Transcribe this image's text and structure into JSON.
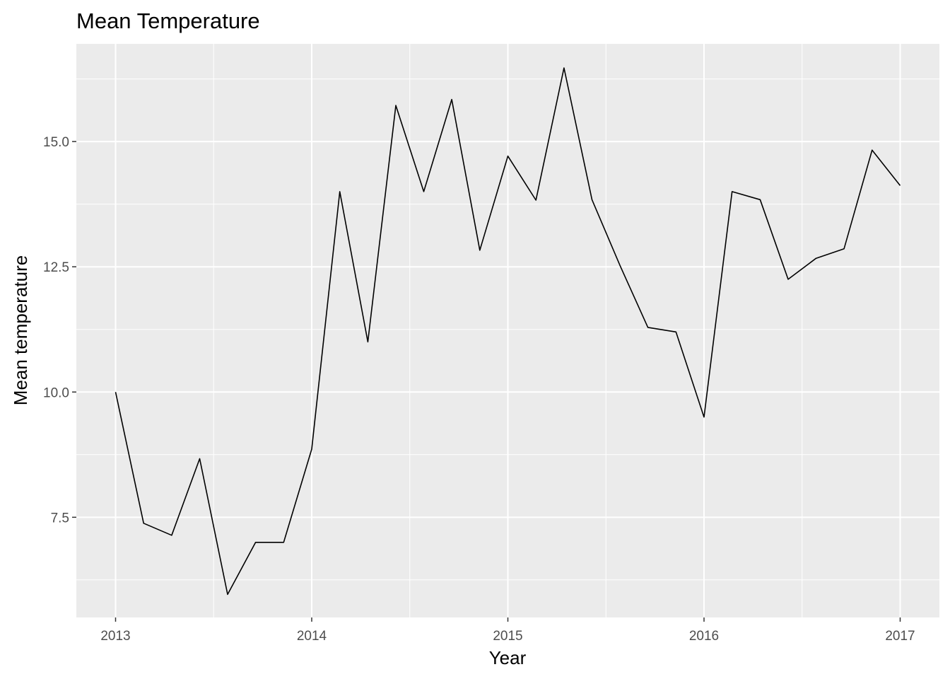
{
  "chart_data": {
    "type": "line",
    "title": "Mean Temperature",
    "xlabel": "Year",
    "ylabel": "Mean temperature",
    "xlim": [
      2012.8,
      2017.2
    ],
    "ylim": [
      5.5,
      16.95
    ],
    "x_ticks": [
      2013,
      2014,
      2015,
      2016,
      2017
    ],
    "x_tick_labels": [
      "2013",
      "2014",
      "2015",
      "2016",
      "2017"
    ],
    "y_ticks": [
      7.5,
      10.0,
      12.5,
      15.0
    ],
    "y_tick_labels": [
      "7.5",
      "10.0",
      "12.5",
      "15.0"
    ],
    "grid": true,
    "legend": "none",
    "colors": {
      "panel": "#ebebeb",
      "grid": "#ffffff",
      "line": "#000000",
      "tick_text": "#4d4d4d"
    },
    "series": [
      {
        "x": [
          2013.0,
          2013.143,
          2013.286,
          2013.429,
          2013.571,
          2013.714,
          2013.857,
          2014.0,
          2014.143,
          2014.286,
          2014.429,
          2014.571,
          2014.714,
          2014.857,
          2015.0,
          2015.143,
          2015.286,
          2015.429,
          2015.571,
          2015.714,
          2015.857,
          2016.0,
          2016.143,
          2016.286,
          2016.429,
          2016.571,
          2016.714,
          2016.857,
          2017.0
        ],
        "values": [
          10.0,
          7.38,
          7.14,
          8.67,
          5.96,
          7.0,
          7.0,
          8.86,
          14.0,
          11.0,
          15.72,
          14.0,
          15.84,
          12.83,
          14.71,
          13.83,
          16.47,
          13.84,
          12.53,
          11.29,
          11.2,
          9.5,
          14.0,
          13.84,
          12.25,
          12.67,
          12.86,
          14.83,
          14.12
        ]
      }
    ]
  }
}
